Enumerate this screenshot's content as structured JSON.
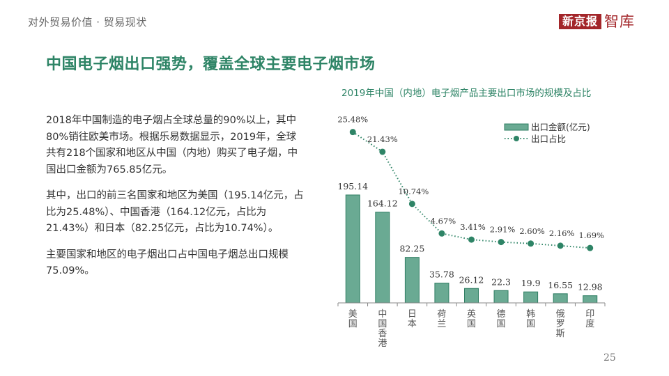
{
  "header": {
    "breadcrumb": "对外贸易价值 · 贸易现状",
    "logo_box": "新京报",
    "logo_text": "智库"
  },
  "title": "中国电子烟出口强势，覆盖全球主要电子烟市场",
  "body": {
    "paragraphs": [
      "2018年中国制造的电子烟占全球总量的90%以上，其中80%销往欧美市场。根据乐易数据显示，2019年，全球共有218个国家和地区从中国（内地）购买了电子烟，中国出口金额为765.85亿元。",
      "其中，出口的前三名国家和地区为美国（195.14亿元，占比为25.48%）、中国香港（164.12亿元，占比为21.43%）和日本（82.25亿元，占比为10.74%）。",
      "主要国家和地区的电子烟出口占中国电子烟总出口规模75.09%。"
    ]
  },
  "page_number": "25",
  "colors": {
    "accent": "#2e8466",
    "bar_fill": "#6aaa93",
    "bar_stroke": "#2e7d62",
    "logo": "#a3262a"
  },
  "chart_data": {
    "type": "bar",
    "title": "2019年中国（内地）电子烟产品主要出口市场的规模及占比",
    "categories": [
      "美国",
      "中国香港",
      "日本",
      "荷兰",
      "英国",
      "德国",
      "韩国",
      "俄罗斯",
      "印度"
    ],
    "series": [
      {
        "name": "出口金额(亿元)",
        "type": "bar",
        "values": [
          195.14,
          164.12,
          82.25,
          35.78,
          26.12,
          22.3,
          19.9,
          16.55,
          12.98
        ],
        "labels": [
          "195.14",
          "164.12",
          "82.25",
          "35.78",
          "26.12",
          "22.3",
          "19.9",
          "16.55",
          "12.98"
        ]
      },
      {
        "name": "出口占比",
        "type": "line",
        "style": "dotted-with-markers",
        "values": [
          25.48,
          21.43,
          10.74,
          4.67,
          3.41,
          2.91,
          2.6,
          2.16,
          1.69
        ],
        "labels": [
          "25.48%",
          "21.43%",
          "10.74%",
          "4.67%",
          "3.41%",
          "2.91%",
          "2.60%",
          "2.16%",
          "1.69%"
        ]
      }
    ],
    "legend": {
      "position": "top-right",
      "items": [
        "出口金额(亿元)",
        "出口占比"
      ]
    },
    "xlabel": "",
    "ylabel": "",
    "grid": false,
    "y_axis_visible": false
  }
}
